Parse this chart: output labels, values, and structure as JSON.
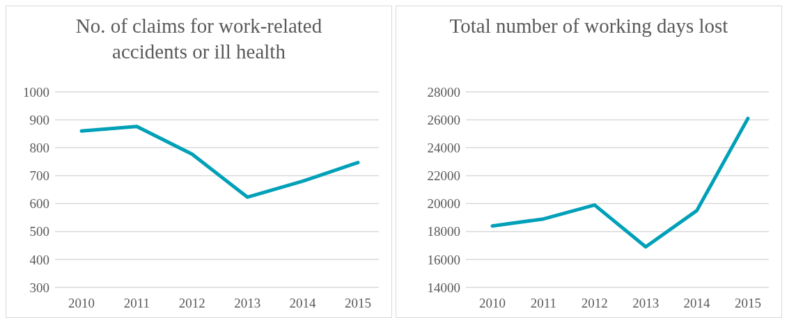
{
  "chart_data": [
    {
      "type": "line",
      "title": "No. of claims for work-related accidents or ill health",
      "categories": [
        "2010",
        "2011",
        "2012",
        "2013",
        "2014",
        "2015"
      ],
      "series": [
        {
          "color": "#00a0b8",
          "values": [
            860,
            876,
            777,
            623,
            680,
            747
          ]
        }
      ],
      "ylim": [
        300,
        1000
      ],
      "yticks": [
        300,
        400,
        500,
        600,
        700,
        800,
        900,
        1000
      ],
      "grid": "y",
      "legend": false,
      "marker": "none",
      "line_style": "solid"
    },
    {
      "type": "line",
      "title": "Total number of working days lost",
      "categories": [
        "2010",
        "2011",
        "2012",
        "2013",
        "2014",
        "2015"
      ],
      "series": [
        {
          "color": "#00a0b8",
          "values": [
            18400,
            18900,
            19900,
            16900,
            19500,
            26100
          ]
        }
      ],
      "ylim": [
        14000,
        28000
      ],
      "yticks": [
        14000,
        16000,
        18000,
        20000,
        22000,
        24000,
        26000,
        28000
      ],
      "grid": "y",
      "legend": false,
      "marker": "none",
      "line_style": "solid"
    }
  ]
}
